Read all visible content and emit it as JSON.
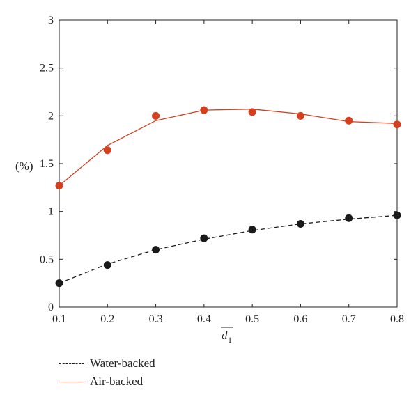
{
  "chart_data": {
    "type": "line",
    "x": [
      0.1,
      0.2,
      0.3,
      0.4,
      0.5,
      0.6,
      0.7,
      0.8
    ],
    "xlim": [
      0.1,
      0.8
    ],
    "ylim": [
      0,
      3
    ],
    "xticks": [
      "0.1",
      "0.2",
      "0.3",
      "0.4",
      "0.5",
      "0.6",
      "0.7",
      "0.8"
    ],
    "yticks": [
      "0",
      "0.5",
      "1",
      "1.5",
      "2",
      "2.5",
      "3"
    ],
    "xlabel": "d1",
    "xlabel_main": "d",
    "xlabel_sub": "1",
    "ylabel": "(%)",
    "grid": false,
    "legend_position": "bottom-left-below",
    "series": [
      {
        "name": "Water-backed",
        "color": "#1a1a1a",
        "line_style": "dashed",
        "points": [
          0.25,
          0.44,
          0.6,
          0.72,
          0.81,
          0.87,
          0.93,
          0.96
        ],
        "line": [
          0.25,
          0.45,
          0.6,
          0.71,
          0.8,
          0.87,
          0.92,
          0.96
        ]
      },
      {
        "name": "Air-backed",
        "color": "#d43f1e",
        "line_style": "solid",
        "points": [
          1.27,
          1.64,
          2.0,
          2.06,
          2.04,
          2.0,
          1.95,
          1.91
        ],
        "line": [
          1.27,
          1.69,
          1.95,
          2.06,
          2.07,
          2.02,
          1.94,
          1.92
        ]
      }
    ]
  }
}
